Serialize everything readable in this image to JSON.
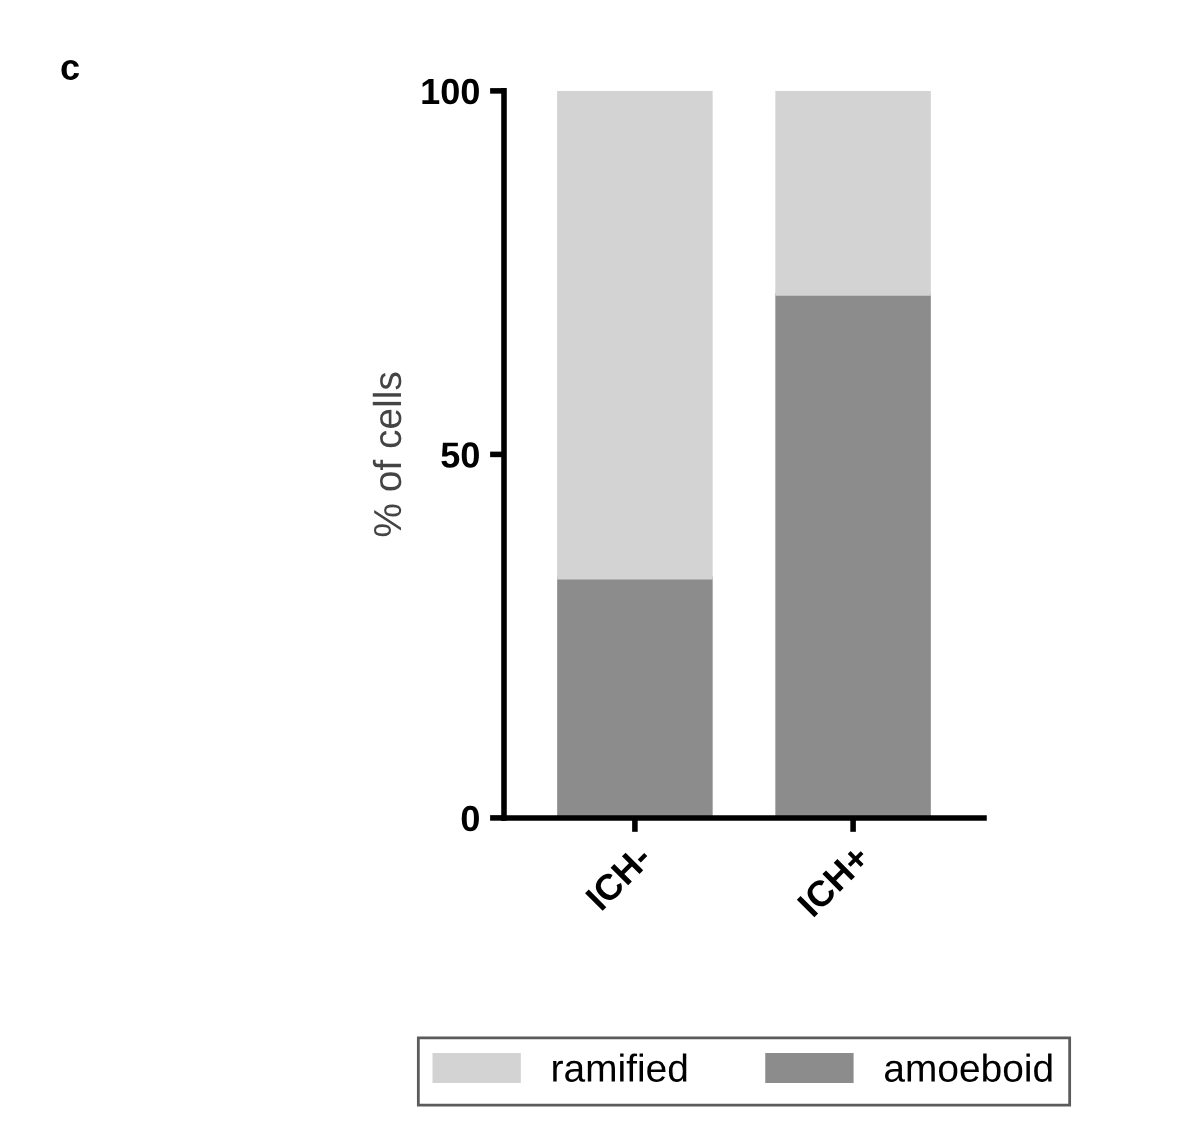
{
  "chart_data": {
    "type": "bar",
    "stacked": true,
    "ylabel": "% of cells",
    "annotations": [
      "c"
    ],
    "categories": [
      "ICH-",
      "ICH+"
    ],
    "series": [
      {
        "name": "amoeboid",
        "color": "#8c8c8c",
        "values": [
          33,
          72
        ]
      },
      {
        "name": "ramified",
        "color": "#d3d3d3",
        "values": [
          67,
          28
        ]
      }
    ],
    "ylim": [
      0,
      100
    ],
    "yticks": [
      0,
      50,
      100
    ],
    "legend": "bottom",
    "grid": false
  }
}
